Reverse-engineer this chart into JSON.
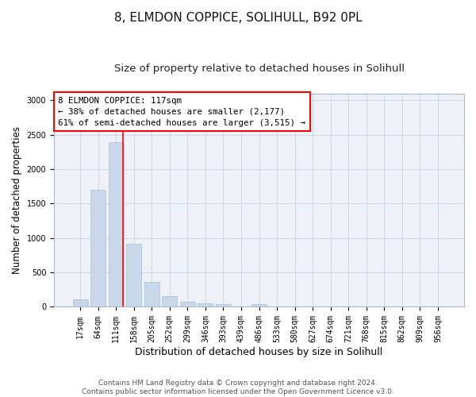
{
  "title": "8, ELMDON COPPICE, SOLIHULL, B92 0PL",
  "subtitle": "Size of property relative to detached houses in Solihull",
  "xlabel": "Distribution of detached houses by size in Solihull",
  "ylabel": "Number of detached properties",
  "bar_color": "#c8d8ea",
  "bar_edge_color": "#a8c0d8",
  "categories": [
    "17sqm",
    "64sqm",
    "111sqm",
    "158sqm",
    "205sqm",
    "252sqm",
    "299sqm",
    "346sqm",
    "393sqm",
    "439sqm",
    "486sqm",
    "533sqm",
    "580sqm",
    "627sqm",
    "674sqm",
    "721sqm",
    "768sqm",
    "815sqm",
    "862sqm",
    "909sqm",
    "956sqm"
  ],
  "values": [
    110,
    1700,
    2390,
    920,
    360,
    150,
    80,
    55,
    40,
    5,
    35,
    5,
    5,
    5,
    0,
    0,
    0,
    0,
    0,
    0,
    0
  ],
  "annotation_text": "8 ELMDON COPPICE: 117sqm\n← 38% of detached houses are smaller (2,177)\n61% of semi-detached houses are larger (3,515) →",
  "annotation_box_color": "white",
  "annotation_box_edge_color": "red",
  "vline_x": 2.4,
  "vline_color": "red",
  "vline_linewidth": 1.2,
  "grid_color": "#d0d8e8",
  "background_color": "#ffffff",
  "plot_bg_color": "#eef2f8",
  "ylim": [
    0,
    3100
  ],
  "yticks": [
    0,
    500,
    1000,
    1500,
    2000,
    2500,
    3000
  ],
  "footer_line1": "Contains HM Land Registry data © Crown copyright and database right 2024.",
  "footer_line2": "Contains public sector information licensed under the Open Government Licence v3.0.",
  "title_fontsize": 11,
  "subtitle_fontsize": 9.5,
  "ylabel_fontsize": 8.5,
  "xlabel_fontsize": 9,
  "tick_fontsize": 7,
  "footer_fontsize": 6.5,
  "annotation_fontsize": 7.8
}
